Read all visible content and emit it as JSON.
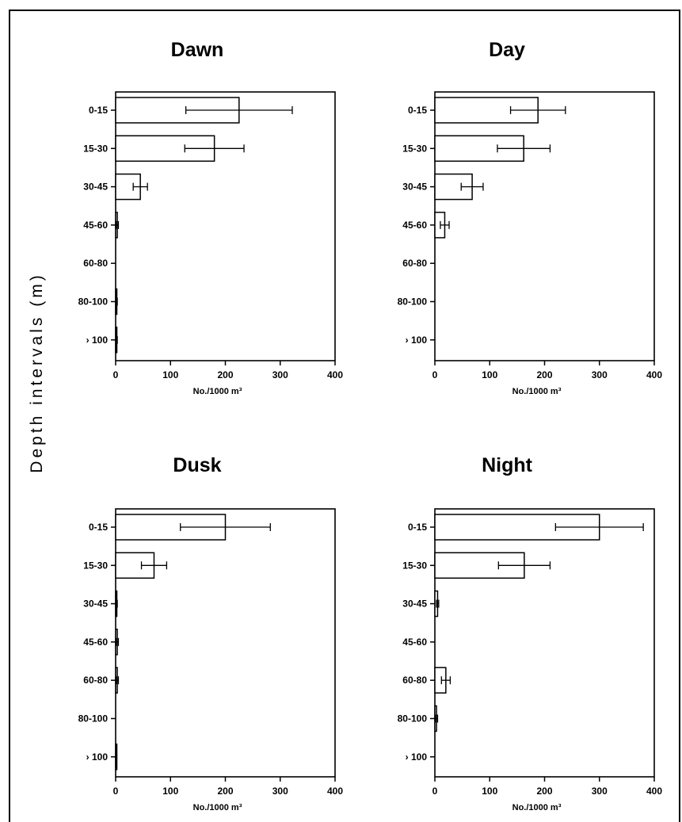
{
  "figure": {
    "ylabel": "Depth intervals (m)"
  },
  "chart_data": [
    {
      "type": "bar",
      "orientation": "horizontal",
      "title": "Dawn",
      "categories": [
        "0-15",
        "15-30",
        "30-45",
        "45-60",
        "60-80",
        "80-100",
        "› 100"
      ],
      "values": [
        225,
        180,
        45,
        3,
        0,
        2,
        2
      ],
      "error": [
        97,
        54,
        13,
        2,
        0,
        1,
        1
      ],
      "xlim": [
        0,
        400
      ],
      "xticks": [
        0,
        100,
        200,
        300,
        400
      ],
      "xlabel": "No./1000 m³",
      "grid": false
    },
    {
      "type": "bar",
      "orientation": "horizontal",
      "title": "Day",
      "categories": [
        "0-15",
        "15-30",
        "30-45",
        "45-60",
        "60-80",
        "80-100",
        "› 100"
      ],
      "values": [
        188,
        162,
        68,
        18,
        0,
        0,
        0
      ],
      "error": [
        50,
        48,
        20,
        8,
        0,
        0,
        0
      ],
      "xlim": [
        0,
        400
      ],
      "xticks": [
        0,
        100,
        200,
        300,
        400
      ],
      "xlabel": "No./1000 m³",
      "grid": false
    },
    {
      "type": "bar",
      "orientation": "horizontal",
      "title": "Dusk",
      "categories": [
        "0-15",
        "15-30",
        "30-45",
        "45-60",
        "60-80",
        "80-100",
        "› 100"
      ],
      "values": [
        200,
        70,
        2,
        3,
        3,
        0,
        1
      ],
      "error": [
        82,
        23,
        1,
        2,
        2,
        0,
        1
      ],
      "xlim": [
        0,
        400
      ],
      "xticks": [
        0,
        100,
        200,
        300,
        400
      ],
      "xlabel": "No./1000 m³",
      "grid": false
    },
    {
      "type": "bar",
      "orientation": "horizontal",
      "title": "Night",
      "categories": [
        "0-15",
        "15-30",
        "30-45",
        "45-60",
        "60-80",
        "80-100",
        "› 100"
      ],
      "values": [
        300,
        163,
        5,
        0,
        20,
        3,
        0
      ],
      "error": [
        80,
        47,
        2,
        0,
        8,
        2,
        0
      ],
      "xlim": [
        0,
        400
      ],
      "xticks": [
        0,
        100,
        200,
        300,
        400
      ],
      "xlabel": "No./1000 m³",
      "grid": false
    }
  ]
}
